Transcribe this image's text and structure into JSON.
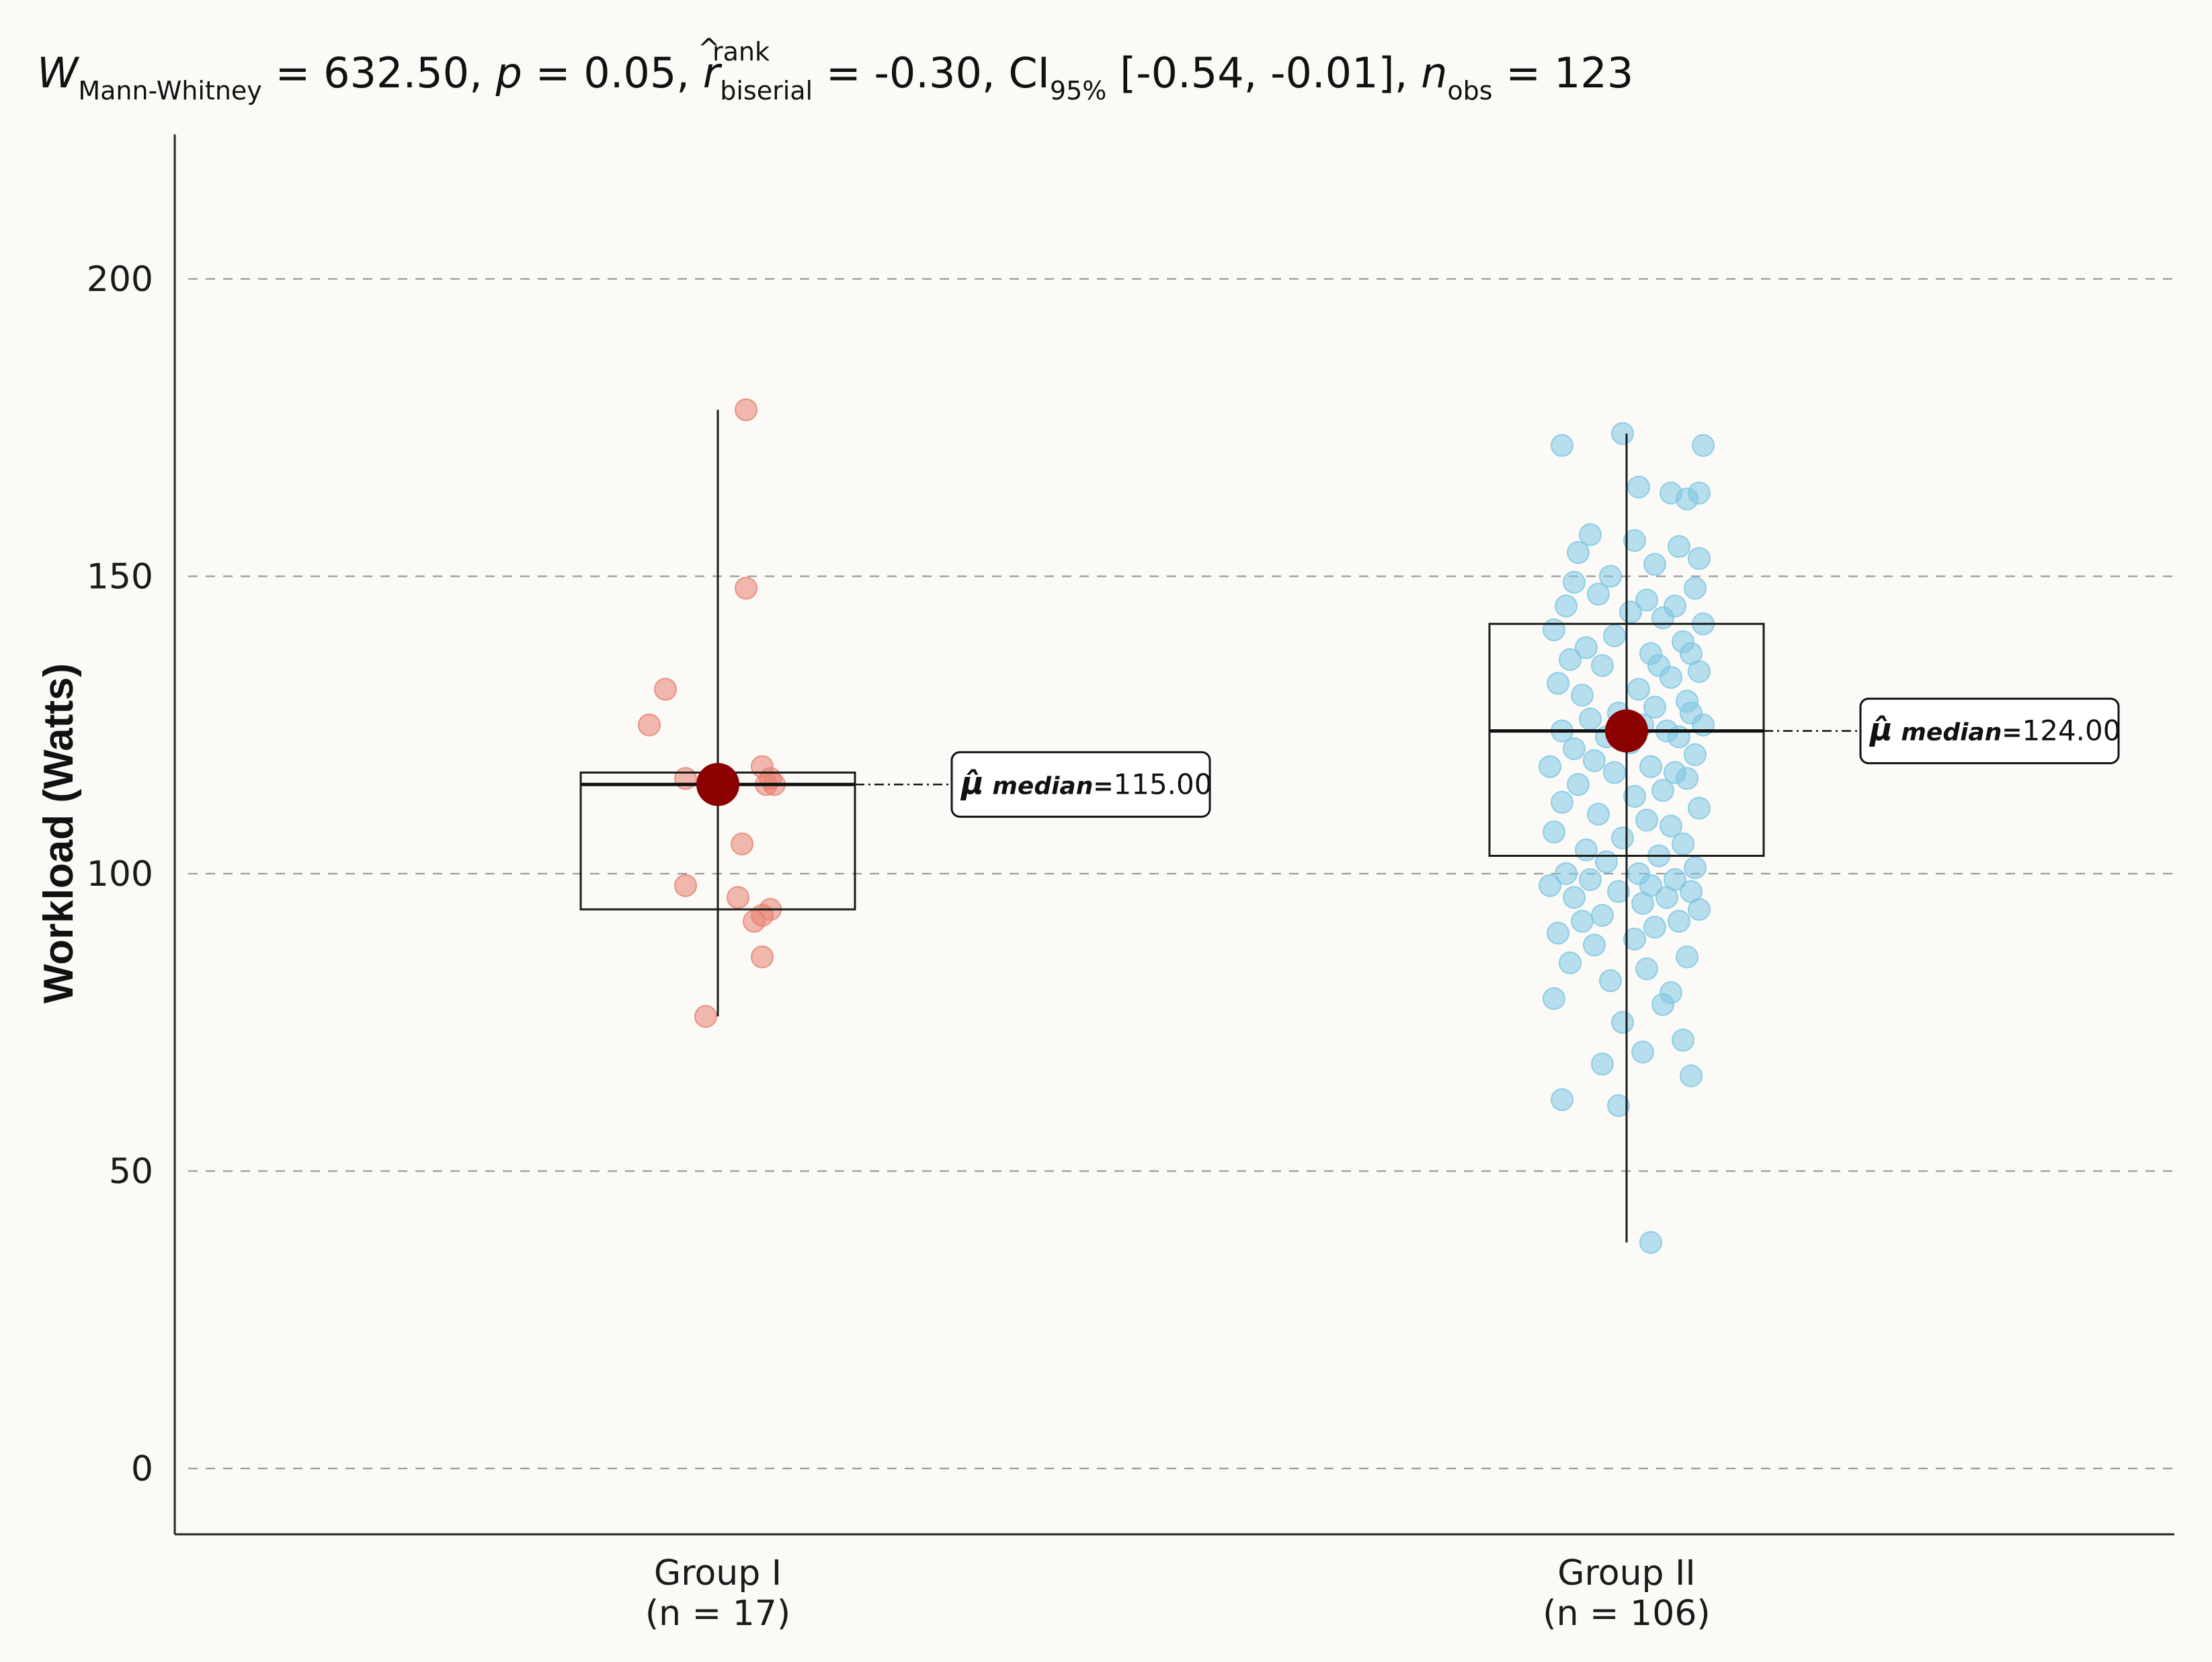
{
  "colors": {
    "background": "#fbfaf7",
    "group1_points": "#e8806f",
    "group2_points": "#7ec6e3",
    "median_marker": "#8b0000",
    "grid": "#9a9a9a",
    "axis": "#222222"
  },
  "stats_title": {
    "w_symbol": "W",
    "w_sub": "Mann-Whitney",
    "w_value": " = 632.50, ",
    "p_symbol": "p",
    "p_value": " = 0.05, ",
    "r_hat": "^",
    "r_sup": "rank",
    "r_symbol": "r",
    "r_sub": "biserial",
    "r_value": " = -0.30, ",
    "ci_symbol": "CI",
    "ci_sub": "95%",
    "ci_value": " [-0.54, -0.01], ",
    "n_symbol": "n",
    "n_sub": "obs",
    "n_value": " = 123"
  },
  "chart_data": {
    "type": "boxplot-with-jitter",
    "ylabel": "Workload (Watts)",
    "xlabel": "",
    "ylim": [
      -10,
      225
    ],
    "yticks": [
      0,
      50,
      100,
      150,
      200
    ],
    "grid": "horizontal dashed",
    "groups": [
      {
        "name": "Group I",
        "n_label": "(n = 17)",
        "color": "#e8806f",
        "median": 115,
        "q1": 94,
        "q3": 117,
        "whisker_low": 76,
        "whisker_high": 178,
        "median_label_symbol": "μ̂",
        "median_label_text": " median=",
        "median_label_value": "115.00",
        "points": [
          178,
          148,
          131,
          125,
          118,
          116,
          116,
          115,
          115,
          105,
          98,
          96,
          94,
          93,
          92,
          86,
          76
        ],
        "jitter": [
          0.07,
          0.07,
          -0.13,
          -0.17,
          0.11,
          0.13,
          -0.08,
          0.14,
          0.12,
          0.06,
          -0.08,
          0.05,
          0.13,
          0.11,
          0.09,
          0.11,
          -0.03
        ]
      },
      {
        "name": "Group II",
        "n_label": "(n = 106)",
        "color": "#7ec6e3",
        "median": 124,
        "q1": 103,
        "q3": 142,
        "whisker_low": 38,
        "whisker_high": 174,
        "median_label_symbol": "μ̂",
        "median_label_text": " median=",
        "median_label_value": "124.00",
        "points": [
          174,
          172,
          172,
          165,
          164,
          164,
          163,
          157,
          156,
          155,
          154,
          153,
          152,
          150,
          149,
          148,
          147,
          146,
          145,
          145,
          144,
          143,
          142,
          141,
          140,
          139,
          138,
          137,
          137,
          136,
          135,
          135,
          134,
          133,
          132,
          131,
          130,
          129,
          128,
          127,
          127,
          126,
          125,
          125,
          124,
          124,
          123,
          123,
          122,
          121,
          120,
          119,
          118,
          118,
          117,
          117,
          116,
          115,
          114,
          113,
          112,
          111,
          110,
          109,
          108,
          107,
          106,
          105,
          104,
          103,
          102,
          101,
          100,
          100,
          99,
          99,
          98,
          98,
          97,
          97,
          96,
          96,
          95,
          94,
          93,
          92,
          92,
          91,
          90,
          89,
          88,
          86,
          85,
          84,
          82,
          80,
          79,
          78,
          75,
          72,
          70,
          68,
          66,
          62,
          61,
          38
        ],
        "jitter": [
          -0.01,
          -0.16,
          0.19,
          0.03,
          0.11,
          0.18,
          0.15,
          -0.09,
          0.02,
          0.13,
          -0.12,
          0.18,
          0.07,
          -0.04,
          -0.13,
          0.17,
          -0.07,
          0.05,
          0.12,
          -0.15,
          0.01,
          0.09,
          0.19,
          -0.18,
          -0.03,
          0.14,
          -0.1,
          0.06,
          0.16,
          -0.14,
          0.08,
          -0.06,
          0.18,
          0.11,
          -0.17,
          0.03,
          -0.11,
          0.15,
          0.07,
          -0.02,
          0.16,
          -0.09,
          0.04,
          0.19,
          -0.16,
          0.1,
          -0.05,
          0.13,
          0.01,
          -0.13,
          0.17,
          -0.08,
          0.06,
          -0.19,
          0.12,
          -0.03,
          0.15,
          -0.12,
          0.09,
          0.02,
          -0.16,
          0.18,
          -0.07,
          0.05,
          0.11,
          -0.18,
          -0.01,
          0.14,
          -0.1,
          0.08,
          -0.05,
          0.17,
          0.03,
          -0.15,
          0.12,
          -0.09,
          0.06,
          -0.19,
          0.16,
          -0.02,
          0.1,
          -0.13,
          0.04,
          0.18,
          -0.06,
          0.13,
          -0.11,
          0.07,
          -0.17,
          0.02,
          -0.08,
          0.15,
          -0.14,
          0.05,
          -0.04,
          0.11,
          -0.18,
          0.09,
          -0.01,
          0.14,
          0.04,
          -0.06,
          0.16,
          -0.16,
          -0.02,
          0.06
        ]
      }
    ]
  }
}
